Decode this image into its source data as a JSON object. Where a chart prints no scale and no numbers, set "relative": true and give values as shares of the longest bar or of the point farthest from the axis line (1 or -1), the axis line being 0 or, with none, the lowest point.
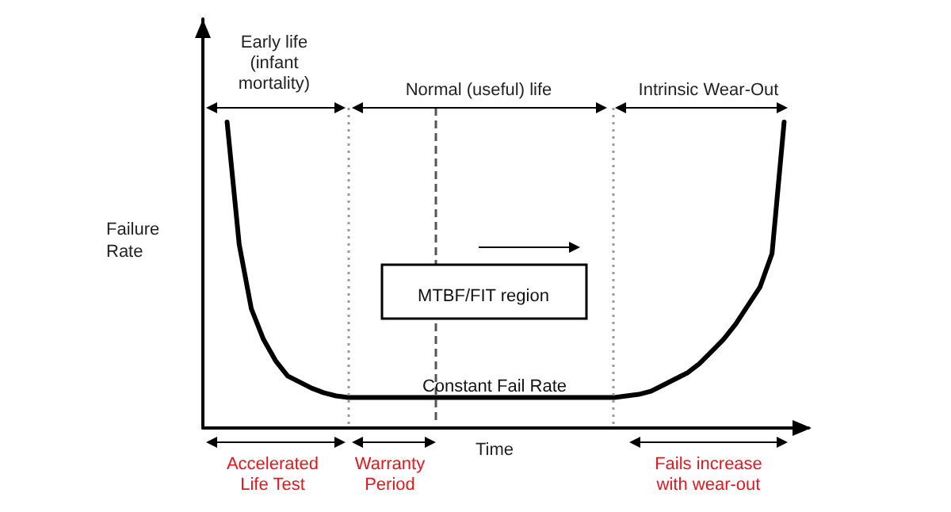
{
  "chart_data": {
    "type": "line",
    "relative": true,
    "xlabel": "Time",
    "ylabel": "Failure Rate",
    "categories": [
      null,
      null,
      null,
      null,
      null,
      null,
      null,
      null,
      null,
      null,
      null,
      null,
      null,
      null,
      null,
      null,
      null,
      null,
      null,
      null,
      null,
      null,
      null,
      null,
      null,
      null,
      null,
      null,
      null,
      null,
      null,
      null,
      null,
      null,
      null,
      null,
      null,
      null,
      null,
      null,
      null,
      null,
      null,
      null,
      null,
      null,
      null,
      null,
      null,
      null,
      null
    ],
    "marker": "none",
    "line_style": "solid",
    "series": [
      {
        "color": "#000000",
        "values": [
          null,
          null,
          1,
          0.6,
          0.39,
          0.29,
          0.22,
          0.17,
          0.15,
          0.13,
          0.115,
          0.105,
          0.1,
          0.1,
          0.1,
          0.1,
          0.1,
          0.1,
          0.1,
          0.1,
          0.1,
          0.1,
          0.1,
          0.1,
          0.1,
          0.1,
          0.1,
          0.1,
          0.1,
          0.1,
          0.1,
          0.1,
          0.1,
          0.1,
          0.1,
          0.105,
          0.11,
          0.12,
          0.14,
          0.16,
          0.18,
          0.21,
          0.25,
          0.29,
          0.34,
          0.4,
          0.46,
          0.57,
          1,
          null,
          null
        ]
      }
    ],
    "annotations": [
      "Early life\n(infant\nmortality)",
      "Normal (useful) life",
      "Intrinsic Wear-Out",
      "MTBF/FIT region",
      "Constant Fail Rate",
      "Accelerated\nLife Test",
      "Warranty\nPeriod",
      "Fails increase\nwith wear-out"
    ]
  }
}
